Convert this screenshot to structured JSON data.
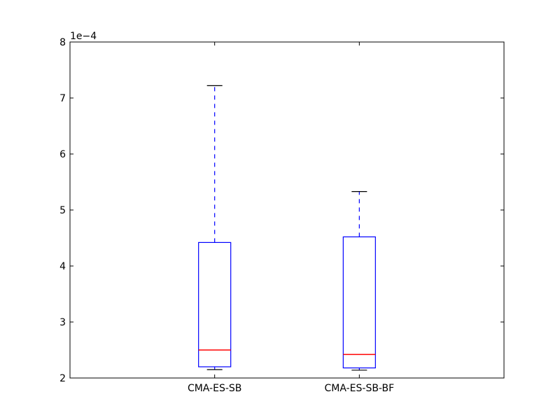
{
  "chart_data": {
    "type": "box",
    "title": "",
    "xlabel": "",
    "ylabel": "",
    "y_multiplier": "1e−4",
    "ylim": [
      2,
      8
    ],
    "yticks": [
      2,
      3,
      4,
      5,
      6,
      7,
      8
    ],
    "grid": false,
    "categories": [
      "CMA-ES-SB",
      "CMA-ES-SB-BF"
    ],
    "boxes": [
      {
        "label": "CMA-ES-SB",
        "whisker_low": 2.15,
        "q1": 2.2,
        "median": 2.5,
        "q3": 4.42,
        "whisker_high": 7.22
      },
      {
        "label": "CMA-ES-SB-BF",
        "whisker_low": 2.14,
        "q1": 2.18,
        "median": 2.42,
        "q3": 4.52,
        "whisker_high": 5.33
      }
    ],
    "colors": {
      "box": "#0000ff",
      "median": "#ff0000",
      "caps": "#000000",
      "whisker": "#0000ff"
    }
  }
}
